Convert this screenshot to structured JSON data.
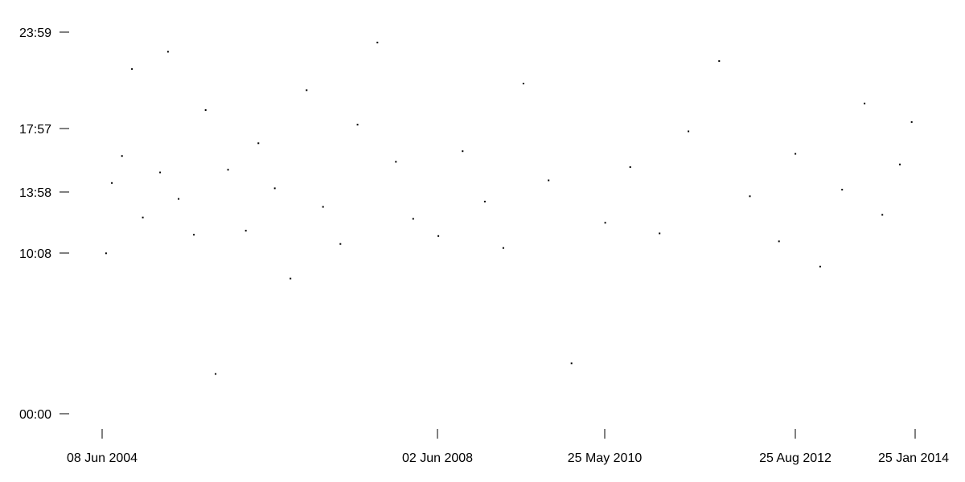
{
  "chart_data": {
    "type": "scatter",
    "title": "",
    "xlabel": "",
    "ylabel": "",
    "x_axis": {
      "kind": "date",
      "range": [
        "2004-06-08",
        "2014-01-25"
      ],
      "ticks": [
        {
          "date": "2004-06-08",
          "label": "08 Jun 2004"
        },
        {
          "date": "2008-06-02",
          "label": "02 Jun 2008"
        },
        {
          "date": "2010-05-25",
          "label": "25 May 2010"
        },
        {
          "date": "2012-08-25",
          "label": "25 Aug 2012"
        },
        {
          "date": "2014-01-25",
          "label": "25 Jan 2014"
        }
      ]
    },
    "y_axis": {
      "kind": "time-of-day",
      "range": [
        "00:00",
        "23:59"
      ],
      "ticks": [
        {
          "time": "00:00",
          "label": "00:00"
        },
        {
          "time": "10:08",
          "label": "10:08"
        },
        {
          "time": "13:58",
          "label": "13:58"
        },
        {
          "time": "17:57",
          "label": "17:57"
        },
        {
          "time": "23:59",
          "label": "23:59"
        }
      ]
    },
    "grid": false,
    "legend": "none",
    "point_color": "#000000",
    "series": [
      {
        "points": [
          [
            "2004-06-25",
            "10:05"
          ],
          [
            "2004-07-20",
            "14:30"
          ],
          [
            "2004-09-02",
            "16:12"
          ],
          [
            "2004-10-15",
            "21:40"
          ],
          [
            "2004-12-01",
            "12:20"
          ],
          [
            "2005-02-14",
            "15:10"
          ],
          [
            "2005-03-20",
            "22:45"
          ],
          [
            "2005-05-05",
            "13:30"
          ],
          [
            "2005-07-10",
            "11:15"
          ],
          [
            "2005-08-30",
            "19:05"
          ],
          [
            "2005-10-12",
            "02:30"
          ],
          [
            "2005-12-05",
            "15:20"
          ],
          [
            "2006-02-20",
            "11:30"
          ],
          [
            "2006-04-15",
            "17:00"
          ],
          [
            "2006-06-25",
            "14:10"
          ],
          [
            "2006-09-01",
            "08:30"
          ],
          [
            "2006-11-10",
            "20:20"
          ],
          [
            "2007-01-20",
            "13:00"
          ],
          [
            "2007-04-05",
            "10:40"
          ],
          [
            "2007-06-18",
            "18:10"
          ],
          [
            "2007-09-12",
            "23:20"
          ],
          [
            "2007-12-01",
            "15:50"
          ],
          [
            "2008-02-14",
            "12:15"
          ],
          [
            "2008-06-02",
            "11:10"
          ],
          [
            "2008-09-15",
            "16:30"
          ],
          [
            "2008-12-20",
            "13:20"
          ],
          [
            "2009-03-10",
            "10:25"
          ],
          [
            "2009-06-05",
            "20:45"
          ],
          [
            "2009-09-22",
            "14:40"
          ],
          [
            "2009-12-30",
            "03:10"
          ],
          [
            "2010-05-25",
            "12:00"
          ],
          [
            "2010-09-10",
            "15:30"
          ],
          [
            "2011-01-15",
            "11:20"
          ],
          [
            "2011-05-20",
            "17:45"
          ],
          [
            "2011-09-30",
            "22:10"
          ],
          [
            "2012-02-10",
            "13:40"
          ],
          [
            "2012-06-15",
            "10:50"
          ],
          [
            "2012-08-25",
            "16:20"
          ],
          [
            "2012-12-10",
            "09:15"
          ],
          [
            "2013-03-15",
            "14:05"
          ],
          [
            "2013-06-20",
            "19:30"
          ],
          [
            "2013-09-05",
            "12:30"
          ],
          [
            "2013-11-20",
            "15:40"
          ],
          [
            "2014-01-10",
            "18:20"
          ]
        ]
      }
    ]
  }
}
